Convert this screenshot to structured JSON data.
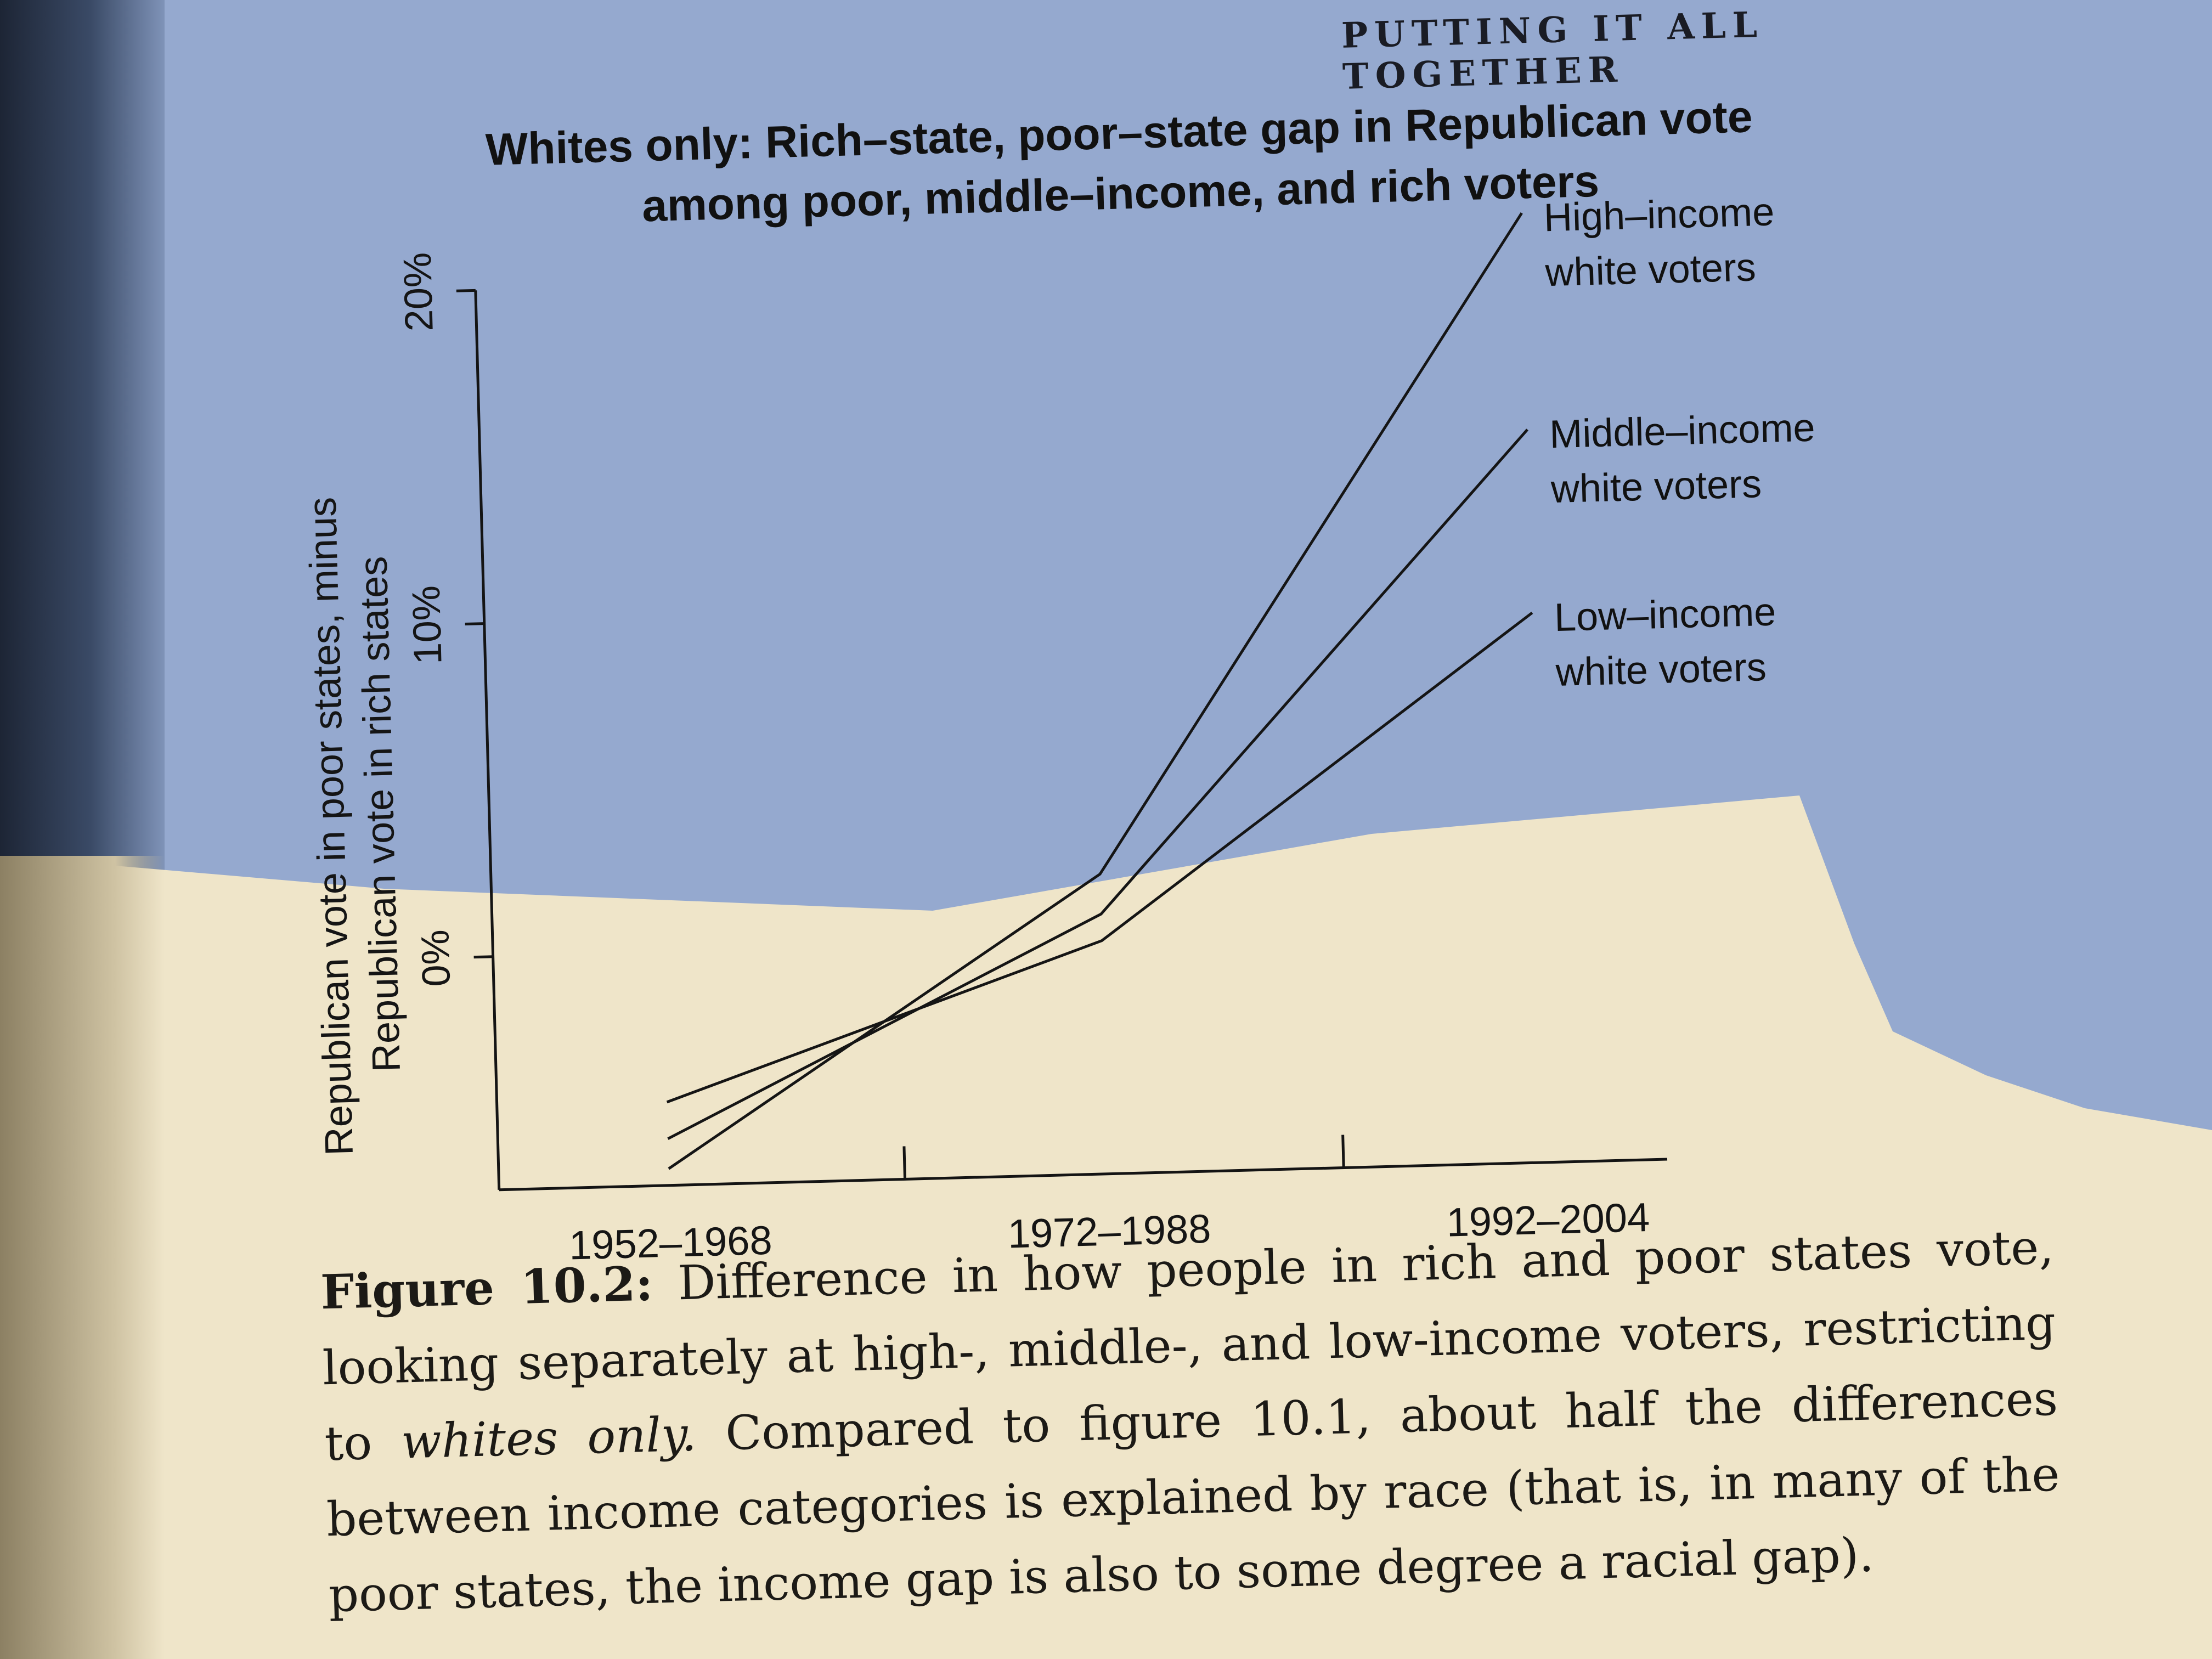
{
  "header": {
    "running_head": "PUTTING IT ALL TOGETHER"
  },
  "chart_data": {
    "type": "line",
    "title": "Whites only: Rich–state, poor–state gap in Republican vote among poor, middle–income, and rich voters",
    "ylabel": "Republican vote in poor states, minus Republican vote in rich states",
    "ylabel_lines": [
      "Republican vote in poor states, minus",
      "Republican vote in rich states"
    ],
    "xlabel": "",
    "categories": [
      "1952–1968",
      "1972–1988",
      "1992–2004"
    ],
    "yticks": [
      0,
      10,
      20
    ],
    "ytick_labels": [
      "0%",
      "10%",
      "20%"
    ],
    "ylim": [
      -7,
      20
    ],
    "grid": false,
    "legend": "direct labels at line ends",
    "series": [
      {
        "name": "High–income white voters",
        "label_lines": [
          "High–income",
          "white voters"
        ],
        "values": [
          -6.5,
          2.0,
          21.5
        ]
      },
      {
        "name": "Middle–income white voters",
        "label_lines": [
          "Middle–income",
          "white voters"
        ],
        "values": [
          -5.6,
          0.8,
          15.0
        ]
      },
      {
        "name": "Low–income white voters",
        "label_lines": [
          "Low–income",
          "white voters"
        ],
        "values": [
          -4.5,
          0.0,
          9.5
        ]
      }
    ]
  },
  "caption": {
    "figure_label": "Figure 10.2:",
    "text_1": "Difference in how people in rich and poor states vote, looking separately at high-, middle-, and low-income voters, restricting to",
    "emphasis": "whites only.",
    "text_2": "Compared to figure 10.1, about half the differences between income categories is explained by race (that is, in many of the poor states, the income gap is also to some degree a racial gap)."
  }
}
